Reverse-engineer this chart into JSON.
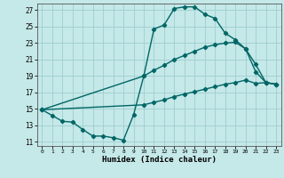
{
  "xlabel": "Humidex (Indice chaleur)",
  "bg_color": "#c5e8e8",
  "line_color": "#006666",
  "xlim": [
    -0.5,
    23.5
  ],
  "ylim": [
    10.5,
    27.8
  ],
  "xticks": [
    0,
    1,
    2,
    3,
    4,
    5,
    6,
    7,
    8,
    9,
    10,
    11,
    12,
    13,
    14,
    15,
    16,
    17,
    18,
    19,
    20,
    21,
    22,
    23
  ],
  "yticks": [
    11,
    13,
    15,
    17,
    19,
    21,
    23,
    25,
    27
  ],
  "line1_x": [
    0,
    1,
    2,
    3,
    4,
    5,
    6,
    7,
    8,
    9,
    10,
    11,
    12,
    13,
    14,
    15,
    16,
    17,
    18,
    19,
    20,
    21,
    22,
    23
  ],
  "line1_y": [
    14.9,
    14.2,
    13.5,
    13.4,
    12.5,
    11.7,
    11.7,
    11.5,
    11.2,
    14.3,
    19.0,
    24.7,
    25.2,
    27.2,
    27.4,
    27.4,
    26.5,
    26.0,
    24.2,
    23.4,
    22.3,
    20.4,
    18.2,
    18.0
  ],
  "line2_x": [
    0,
    10,
    11,
    12,
    13,
    14,
    15,
    16,
    17,
    18,
    19,
    20,
    21,
    22,
    23
  ],
  "line2_y": [
    14.9,
    19.0,
    19.7,
    20.3,
    21.0,
    21.5,
    22.0,
    22.5,
    22.8,
    23.0,
    23.1,
    22.3,
    19.5,
    18.2,
    18.0
  ],
  "line3_x": [
    0,
    10,
    11,
    12,
    13,
    14,
    15,
    16,
    17,
    18,
    19,
    20,
    21,
    22,
    23
  ],
  "line3_y": [
    14.9,
    15.5,
    15.8,
    16.1,
    16.5,
    16.8,
    17.1,
    17.4,
    17.7,
    18.0,
    18.2,
    18.5,
    18.1,
    18.2,
    18.0
  ],
  "grid_color": "#9ecece",
  "marker": "D",
  "marker_size": 2.2,
  "line_width": 1.0
}
